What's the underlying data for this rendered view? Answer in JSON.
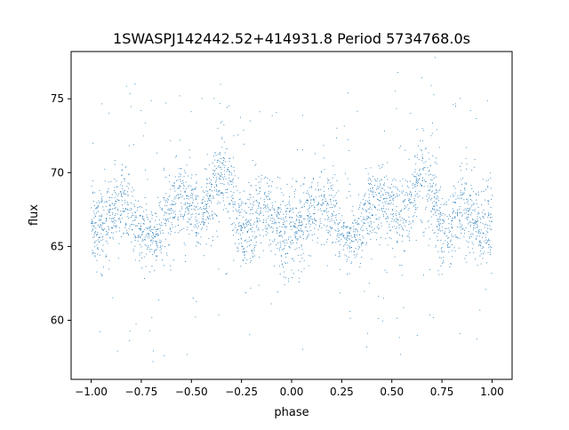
{
  "chart_data": {
    "type": "scatter",
    "title": "1SWASPJ142442.52+414931.8 Period 5734768.0s",
    "xlabel": "phase",
    "ylabel": "flux",
    "xlim": [
      -1.1,
      1.1
    ],
    "ylim": [
      56.0,
      78.2
    ],
    "xticks": [
      -1.0,
      -0.75,
      -0.5,
      -0.25,
      0.0,
      0.25,
      0.5,
      0.75,
      1.0
    ],
    "xtick_labels": [
      "−1.00",
      "−0.75",
      "−0.50",
      "−0.25",
      "0.00",
      "0.25",
      "0.50",
      "0.75",
      "1.00"
    ],
    "yticks": [
      60,
      65,
      70,
      75
    ],
    "ytick_labels": [
      "60",
      "65",
      "70",
      "75"
    ],
    "grid": false,
    "marker_color": "#1f77b4",
    "series": [
      {
        "phase": [
          -1.0,
          -0.95,
          -0.9,
          -0.85,
          -0.8,
          -0.75,
          -0.7,
          -0.65,
          -0.6,
          -0.55,
          -0.5,
          -0.45,
          -0.4,
          -0.35,
          -0.3,
          -0.25,
          -0.2,
          -0.15,
          -0.1,
          -0.05,
          0.0,
          0.05,
          0.1,
          0.15,
          0.2,
          0.25,
          0.3,
          0.35,
          0.4,
          0.45,
          0.5,
          0.55,
          0.6,
          0.65,
          0.7,
          0.75,
          0.8,
          0.85,
          0.9,
          0.95,
          1.0
        ],
        "flux_mean": [
          66.5,
          66.2,
          67.0,
          67.8,
          67.2,
          65.8,
          65.6,
          66.3,
          67.5,
          68.2,
          67.5,
          67.0,
          68.0,
          70.0,
          68.5,
          66.0,
          66.5,
          67.5,
          67.0,
          66.0,
          66.5,
          66.2,
          67.0,
          67.8,
          67.2,
          65.8,
          65.6,
          66.3,
          67.5,
          68.2,
          67.5,
          67.0,
          68.0,
          70.0,
          68.5,
          66.0,
          66.5,
          67.5,
          67.0,
          66.0,
          66.5
        ],
        "flux_spread": [
          2.2,
          2.0,
          1.8,
          2.0,
          1.8,
          1.6,
          1.5,
          1.6,
          1.8,
          1.8,
          1.8,
          1.8,
          2.0,
          2.4,
          2.2,
          1.8,
          1.8,
          1.8,
          1.8,
          1.8,
          2.2,
          2.0,
          1.8,
          2.0,
          1.8,
          1.6,
          1.5,
          1.6,
          1.8,
          1.8,
          1.8,
          1.8,
          2.0,
          2.4,
          2.2,
          1.8,
          1.8,
          1.8,
          1.8,
          1.8,
          2.2
        ]
      }
    ]
  }
}
